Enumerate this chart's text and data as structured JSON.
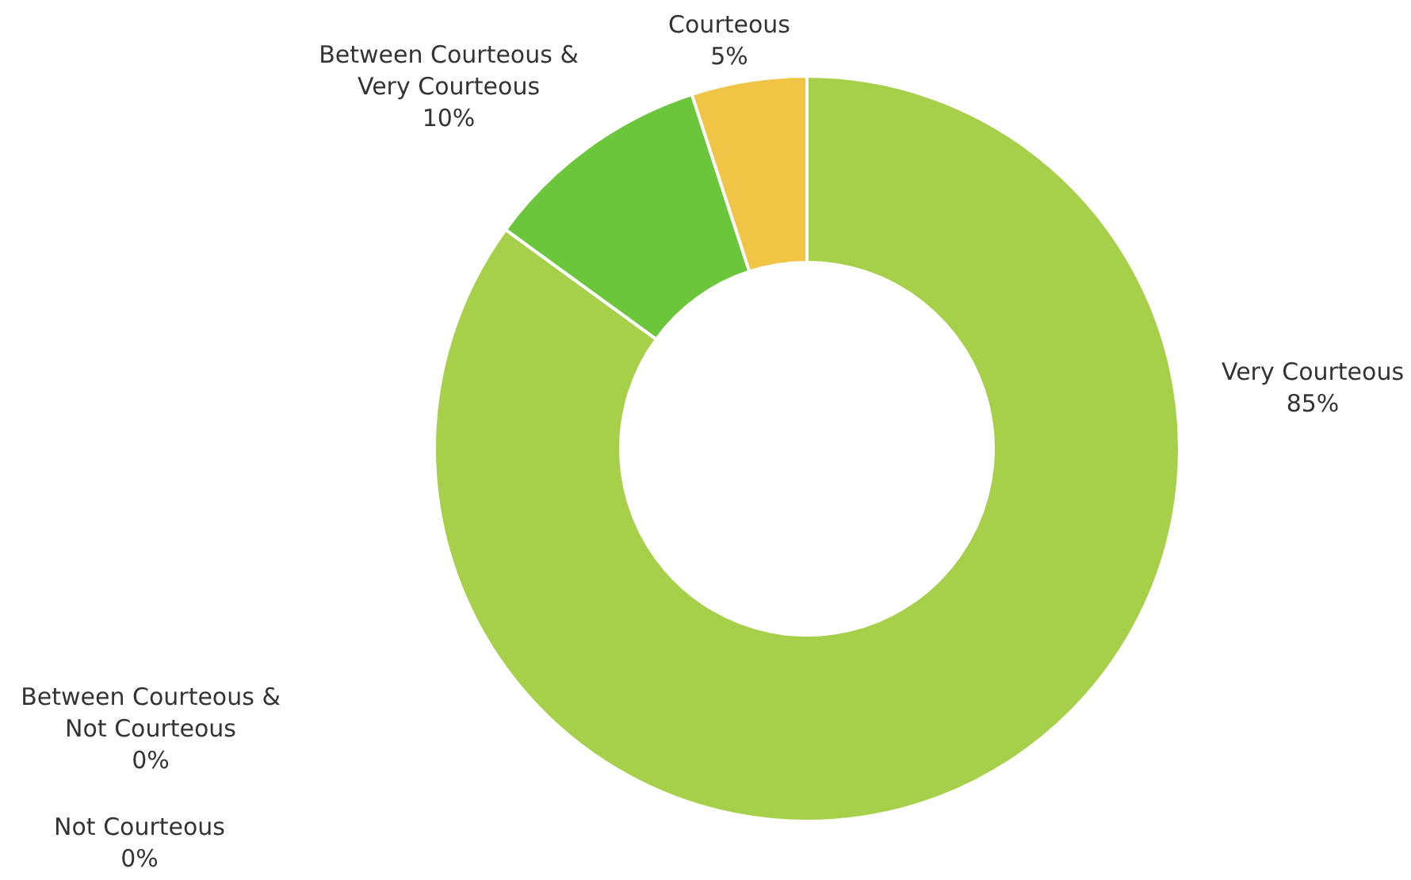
{
  "chart_data": {
    "type": "donut",
    "categories": [
      "Very Courteous",
      "Between Courteous & Not Courteous",
      "Not Courteous",
      "Between Courteous & Very Courteous",
      "Courteous"
    ],
    "values": [
      85,
      0,
      0,
      10,
      5
    ],
    "value_labels": [
      "85%",
      "0%",
      "0%",
      "10%",
      "5%"
    ],
    "colors": [
      "#a6d04a",
      "#4f81bd",
      "#c0504d",
      "#6cc63c",
      "#f0c444"
    ],
    "legend": false
  }
}
